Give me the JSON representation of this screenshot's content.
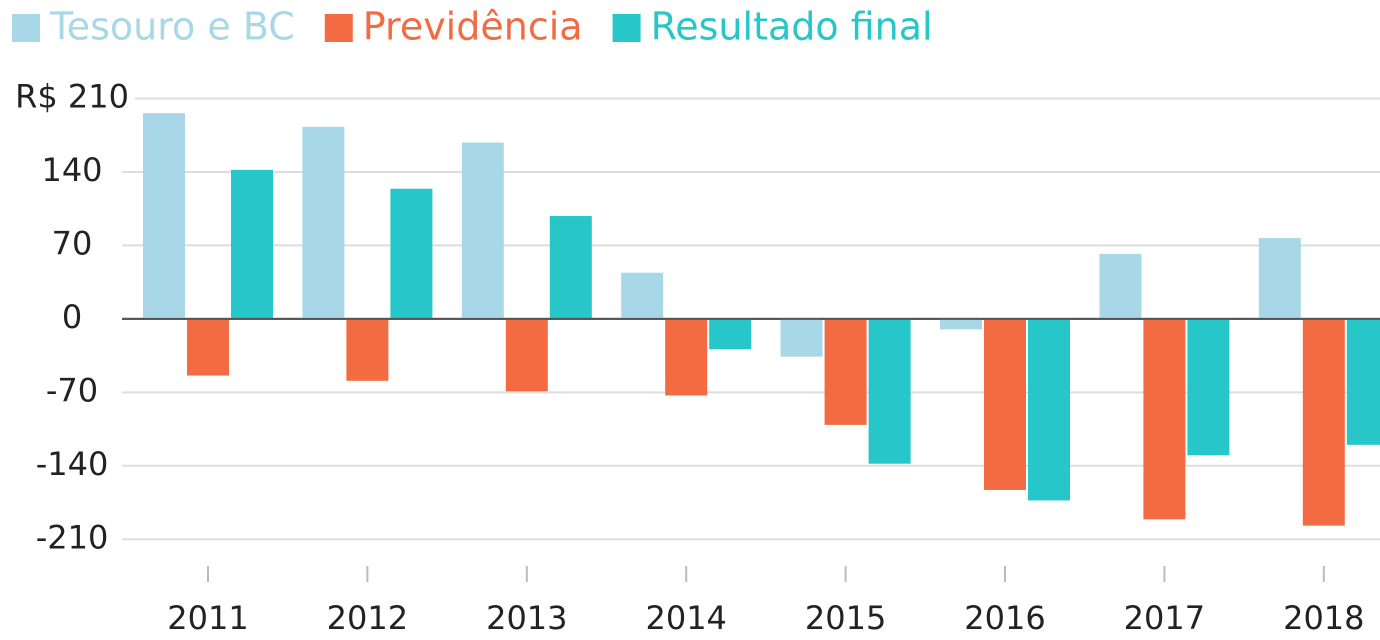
{
  "chart_data": {
    "type": "bar",
    "categories": [
      "2011",
      "2012",
      "2013",
      "2014",
      "2015",
      "2016",
      "2017",
      "2018"
    ],
    "series": [
      {
        "name": "Tesouro e BC",
        "color": "#a8d8e8",
        "values": [
          196,
          183,
          168,
          44,
          -36,
          -10,
          62,
          77
        ]
      },
      {
        "name": "Previdência",
        "color": "#f26b43",
        "values": [
          -54,
          -59,
          -69,
          -73,
          -101,
          -163,
          -191,
          -197
        ]
      },
      {
        "name": "Resultado final",
        "color": "#26c6c9",
        "values": [
          142,
          124,
          98,
          -29,
          -138,
          -173,
          -130,
          -120
        ]
      }
    ],
    "ylim": [
      -245,
      220
    ],
    "yticks": [
      {
        "value": 210,
        "label": "R$ 210"
      },
      140,
      70,
      0,
      -70,
      -140,
      -210
    ],
    "grid": true
  }
}
